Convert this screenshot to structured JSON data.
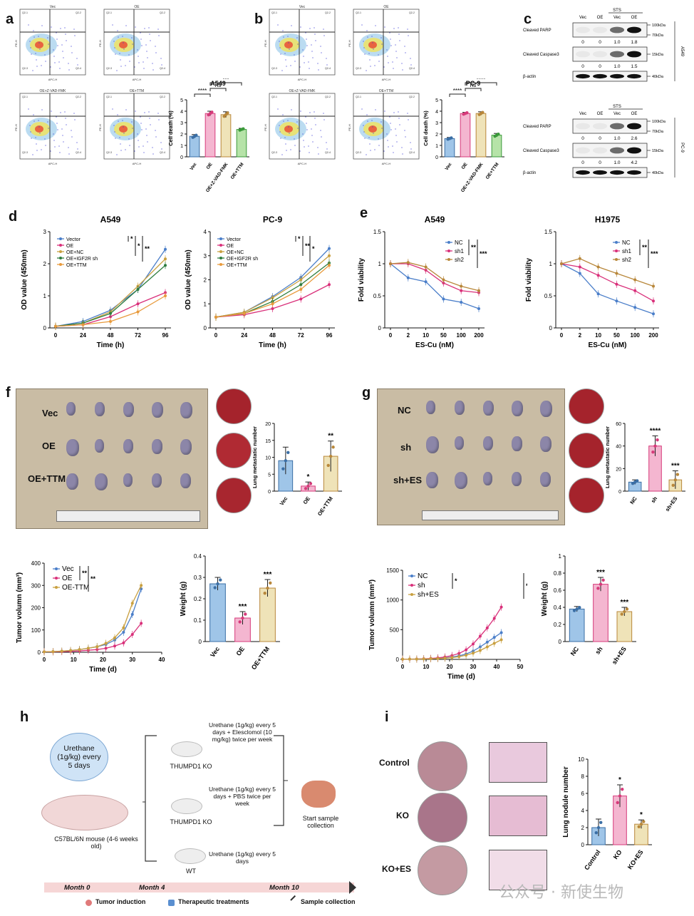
{
  "panel_labels": {
    "a": "a",
    "b": "b",
    "c": "c",
    "d": "d",
    "e": "e",
    "f": "f",
    "g": "g",
    "h": "h",
    "i": "i"
  },
  "flow_a": [
    "Vec",
    "OE",
    "OE+Z-VAD-FMK",
    "OE+TTM"
  ],
  "flow_b": [
    "Vec",
    "OE",
    "OE+Z-VAD-FMK",
    "OE+TTM"
  ],
  "flow_axes": {
    "x": "APC-H",
    "y": "PE-H"
  },
  "quad_labels": [
    "Q2-1",
    "Q2-2",
    "Q2-3",
    "Q2-4"
  ],
  "western": {
    "treat_header": "STS",
    "lanes": [
      "Vec",
      "OE",
      "Vec",
      "OE"
    ],
    "a549": {
      "cell_line": "A549",
      "rows": [
        {
          "name": "Cleaved PARP",
          "markers": [
            "100kDa",
            "70kDa"
          ],
          "values": [
            "0",
            "0",
            "1.0",
            "1.8"
          ]
        },
        {
          "name": "Cleaved Caspase3",
          "markers": [
            "15kDa"
          ],
          "values": [
            "0",
            "0",
            "1.0",
            "1.5"
          ]
        },
        {
          "name": "β-actin",
          "markers": [
            "40kDa"
          ],
          "values": []
        }
      ]
    },
    "pc9": {
      "cell_line": "PC-9",
      "rows": [
        {
          "name": "Cleaved PARP",
          "markers": [
            "100kDa",
            "70kDa"
          ],
          "values": [
            "0",
            "0",
            "1.0",
            "2.6"
          ]
        },
        {
          "name": "Cleaved Caspase3",
          "markers": [
            "15kDa"
          ],
          "values": [
            "0",
            "0",
            "1.0",
            "4.2"
          ]
        },
        {
          "name": "β-actin",
          "markers": [
            "40kDa"
          ],
          "values": []
        }
      ]
    }
  },
  "photo_f": {
    "rows": [
      "Vec",
      "OE",
      "OE+TTM"
    ]
  },
  "photo_g": {
    "rows": [
      "NC",
      "sh",
      "sh+ES"
    ]
  },
  "schematic": {
    "urethane_bubble": "Urethane (1g/kg) every 5 days",
    "mouse_label": "C57BL/6N mouse (4-6 weeks old)",
    "group1_treat": "Urethane (1g/kg) every 5 days + Elesclomol (10 mg/kg) twice per week",
    "group1_label": "THUMPD1 KO",
    "group2_treat": "Urethane (1g/kg) every 5 days + PBS twice per week",
    "group2_label": "THUMPD1 KO",
    "group3_treat": "Urethane (1g/kg) every 5 days",
    "group3_label": "WT",
    "collection": "Start sample collection",
    "timeline": [
      "Month 0",
      "Month 4",
      "Month 10"
    ],
    "legend": [
      "Tumor induction",
      "Therapeutic treatments",
      "Sample collection"
    ]
  },
  "panel_i_rows": [
    "Control",
    "KO",
    "KO+ES"
  ],
  "watermark": "公众号 · 新使生物",
  "chart_data": [
    {
      "id": "a_bar",
      "type": "bar",
      "title": "A549",
      "ylabel": "Cell death (%)",
      "categories": [
        "Vec",
        "OE",
        "OE+Z-VAD-FMK",
        "OE+TTM"
      ],
      "values": [
        1.8,
        3.8,
        3.7,
        2.4
      ],
      "errors": [
        0.15,
        0.2,
        0.25,
        0.1
      ],
      "ylim": [
        0,
        5
      ],
      "yticks": [
        0,
        1,
        2,
        3,
        4,
        5
      ],
      "colors": [
        "#9fc5e8",
        "#f4b6d0",
        "#efe3b8",
        "#b6e3a8"
      ],
      "dots": [
        "#3a6ea5",
        "#d63a7a",
        "#b8873a",
        "#3a9a3a"
      ],
      "sig": [
        "****",
        "ns",
        "***"
      ]
    },
    {
      "id": "b_bar",
      "type": "bar",
      "title": "PC-9",
      "ylabel": "Cell death (%)",
      "categories": [
        "Vec",
        "OE",
        "OE+Z-VAD-FMK",
        "OE+TTM"
      ],
      "values": [
        1.6,
        3.8,
        3.8,
        1.9
      ],
      "errors": [
        0.1,
        0.1,
        0.15,
        0.15
      ],
      "ylim": [
        0,
        5
      ],
      "yticks": [
        0,
        1,
        2,
        3,
        4,
        5
      ],
      "colors": [
        "#9fc5e8",
        "#f4b6d0",
        "#efe3b8",
        "#b6e3a8"
      ],
      "dots": [
        "#3a6ea5",
        "#d63a7a",
        "#b8873a",
        "#3a9a3a"
      ],
      "sig": [
        "****",
        "ns",
        "****"
      ]
    },
    {
      "id": "d_a549",
      "type": "line",
      "title": "A549",
      "xlabel": "Time (h)",
      "ylabel": "OD value (450nm)",
      "x": [
        0,
        24,
        48,
        72,
        96
      ],
      "ylim": [
        0,
        3
      ],
      "yticks": [
        0,
        1,
        2,
        3
      ],
      "series": [
        {
          "name": "Vector",
          "color": "#4a7ec9",
          "values": [
            0.05,
            0.2,
            0.55,
            1.2,
            2.45
          ]
        },
        {
          "name": "OE",
          "color": "#d9307a",
          "values": [
            0.05,
            0.1,
            0.35,
            0.75,
            1.1
          ]
        },
        {
          "name": "OE+NC",
          "color": "#c9a040",
          "values": [
            0.05,
            0.15,
            0.5,
            1.3,
            2.15
          ]
        },
        {
          "name": "OE+IGF2R sh",
          "color": "#2e7d3e",
          "values": [
            0.05,
            0.15,
            0.45,
            1.2,
            1.95
          ]
        },
        {
          "name": "OE+TTM",
          "color": "#e89a3c",
          "values": [
            0.05,
            0.1,
            0.2,
            0.5,
            1.0
          ]
        }
      ],
      "sig": [
        "*",
        "*",
        "**"
      ]
    },
    {
      "id": "d_pc9",
      "type": "line",
      "title": "PC-9",
      "xlabel": "Time (h)",
      "ylabel": "OD value (450nm)",
      "x": [
        0,
        24,
        48,
        72,
        96
      ],
      "ylim": [
        0,
        4
      ],
      "yticks": [
        0,
        1,
        2,
        3,
        4
      ],
      "series": [
        {
          "name": "Vector",
          "color": "#4a7ec9",
          "values": [
            0.45,
            0.65,
            1.3,
            2.1,
            3.3
          ]
        },
        {
          "name": "OE",
          "color": "#d9307a",
          "values": [
            0.45,
            0.55,
            0.8,
            1.2,
            1.8
          ]
        },
        {
          "name": "OE+NC",
          "color": "#c9a040",
          "values": [
            0.45,
            0.65,
            1.25,
            2.0,
            3.0
          ]
        },
        {
          "name": "OE+IGF2R sh",
          "color": "#2e7d3e",
          "values": [
            0.45,
            0.6,
            1.1,
            1.8,
            2.7
          ]
        },
        {
          "name": "OE+TTM",
          "color": "#e89a3c",
          "values": [
            0.45,
            0.6,
            1.0,
            1.6,
            2.6
          ]
        }
      ],
      "sig": [
        "*",
        "**",
        "*"
      ]
    },
    {
      "id": "e_a549",
      "type": "line",
      "title": "A549",
      "xlabel": "ES-Cu (nM)",
      "ylabel": "Fold viability",
      "x": [
        "0",
        "2",
        "10",
        "50",
        "100",
        "200"
      ],
      "ylim": [
        0,
        1.5
      ],
      "yticks": [
        0,
        0.5,
        1.0,
        1.5
      ],
      "series": [
        {
          "name": "NC",
          "color": "#4a7ec9",
          "values": [
            1.0,
            0.78,
            0.72,
            0.45,
            0.4,
            0.3
          ]
        },
        {
          "name": "sh1",
          "color": "#d9307a",
          "values": [
            1.0,
            1.0,
            0.9,
            0.7,
            0.58,
            0.55
          ]
        },
        {
          "name": "sh2",
          "color": "#b8873a",
          "values": [
            1.0,
            1.02,
            0.95,
            0.75,
            0.65,
            0.58
          ]
        }
      ],
      "sig": [
        "**",
        "***"
      ]
    },
    {
      "id": "e_h1975",
      "type": "line",
      "title": "H1975",
      "xlabel": "ES-Cu (nM)",
      "ylabel": "Fold viability",
      "x": [
        "0",
        "2",
        "10",
        "50",
        "100",
        "200"
      ],
      "ylim": [
        0,
        1.5
      ],
      "yticks": [
        0,
        0.5,
        1.0,
        1.5
      ],
      "series": [
        {
          "name": "NC",
          "color": "#4a7ec9",
          "values": [
            1.0,
            0.85,
            0.53,
            0.42,
            0.32,
            0.22
          ]
        },
        {
          "name": "sh1",
          "color": "#d9307a",
          "values": [
            1.0,
            0.95,
            0.82,
            0.68,
            0.58,
            0.42
          ]
        },
        {
          "name": "sh2",
          "color": "#b8873a",
          "values": [
            1.0,
            1.08,
            0.95,
            0.85,
            0.75,
            0.65
          ]
        }
      ],
      "sig": [
        "**",
        "***"
      ]
    },
    {
      "id": "f_meta",
      "type": "bar",
      "ylabel": "Lung metastatic number",
      "categories": [
        "Vec",
        "OE",
        "OE+TTM"
      ],
      "values": [
        9,
        1.5,
        10.3
      ],
      "errors": [
        4,
        1.2,
        4.5
      ],
      "ylim": [
        0,
        20
      ],
      "yticks": [
        0,
        5,
        10,
        15,
        20
      ],
      "colors": [
        "#9fc5e8",
        "#f4b6d0",
        "#efe3b8"
      ],
      "dots": [
        "#3a6ea5",
        "#d63a7a",
        "#b8873a"
      ],
      "sig": [
        "",
        "*",
        "**"
      ]
    },
    {
      "id": "g_meta",
      "type": "bar",
      "ylabel": "Lung metastatic number",
      "categories": [
        "NC",
        "sh",
        "sh+ES"
      ],
      "values": [
        8,
        40,
        10
      ],
      "errors": [
        2,
        9,
        8
      ],
      "ylim": [
        0,
        60
      ],
      "yticks": [
        0,
        20,
        40,
        60
      ],
      "colors": [
        "#9fc5e8",
        "#f4b6d0",
        "#efe3b8"
      ],
      "dots": [
        "#3a6ea5",
        "#d63a7a",
        "#b8873a"
      ],
      "sig": [
        "",
        "****",
        "***"
      ]
    },
    {
      "id": "f_vol",
      "type": "line",
      "xlabel": "Time (d)",
      "ylabel": "Tumor volumn (mm³)",
      "x": [
        0,
        3,
        6,
        9,
        12,
        15,
        18,
        21,
        24,
        27,
        30,
        33
      ],
      "ylim": [
        0,
        400
      ],
      "yticks": [
        0,
        100,
        200,
        300,
        400
      ],
      "xticks": [
        0,
        10,
        20,
        30,
        40
      ],
      "xlim": [
        0,
        40
      ],
      "series": [
        {
          "name": "Vec",
          "color": "#4a7ec9",
          "values": [
            2,
            3,
            5,
            8,
            12,
            18,
            25,
            35,
            55,
            90,
            170,
            285
          ]
        },
        {
          "name": "OE",
          "color": "#d9307a",
          "values": [
            2,
            2,
            3,
            4,
            6,
            9,
            12,
            18,
            28,
            42,
            80,
            130
          ]
        },
        {
          "name": "OE-TTM",
          "color": "#c9a040",
          "values": [
            2,
            3,
            5,
            8,
            12,
            18,
            25,
            40,
            65,
            110,
            220,
            300
          ]
        }
      ],
      "sig": [
        "**",
        "**"
      ]
    },
    {
      "id": "f_wt",
      "type": "bar",
      "ylabel": "Weight (g)",
      "categories": [
        "Vec",
        "OE",
        "OE+TTM"
      ],
      "values": [
        0.27,
        0.11,
        0.25
      ],
      "errors": [
        0.03,
        0.03,
        0.04
      ],
      "ylim": [
        0,
        0.4
      ],
      "yticks": [
        0,
        0.1,
        0.2,
        0.3,
        0.4
      ],
      "colors": [
        "#9fc5e8",
        "#f4b6d0",
        "#efe3b8"
      ],
      "dots": [
        "#3a6ea5",
        "#d63a7a",
        "#b8873a"
      ],
      "sig": [
        "",
        "***",
        "***"
      ]
    },
    {
      "id": "g_vol",
      "type": "line",
      "xlabel": "Time (d)",
      "ylabel": "Tumor volumn (mm³)",
      "x": [
        0,
        3,
        6,
        9,
        12,
        15,
        18,
        21,
        24,
        27,
        30,
        33,
        36,
        39,
        42
      ],
      "ylim": [
        0,
        1500
      ],
      "yticks": [
        0,
        500,
        1000,
        1500
      ],
      "xticks": [
        0,
        10,
        20,
        30,
        40,
        50
      ],
      "xlim": [
        0,
        50
      ],
      "series": [
        {
          "name": "NC",
          "color": "#4a7ec9",
          "values": [
            3,
            4,
            5,
            8,
            12,
            18,
            25,
            40,
            60,
            90,
            140,
            210,
            290,
            370,
            450
          ]
        },
        {
          "name": "sh",
          "color": "#d9307a",
          "values": [
            3,
            4,
            6,
            10,
            16,
            25,
            40,
            65,
            100,
            160,
            260,
            390,
            530,
            690,
            880
          ]
        },
        {
          "name": "sh+ES",
          "color": "#c9a040",
          "values": [
            3,
            4,
            5,
            7,
            10,
            14,
            20,
            30,
            45,
            70,
            105,
            150,
            210,
            270,
            330
          ]
        }
      ],
      "sig": [
        "*",
        "**"
      ]
    },
    {
      "id": "g_wt",
      "type": "bar",
      "ylabel": "Weight (g)",
      "categories": [
        "NC",
        "sh",
        "sh+ES"
      ],
      "values": [
        0.38,
        0.67,
        0.35
      ],
      "errors": [
        0.03,
        0.08,
        0.05
      ],
      "ylim": [
        0,
        1.0
      ],
      "yticks": [
        0,
        0.2,
        0.4,
        0.6,
        0.8,
        1.0
      ],
      "colors": [
        "#9fc5e8",
        "#f4b6d0",
        "#efe3b8"
      ],
      "dots": [
        "#3a6ea5",
        "#d63a7a",
        "#b8873a"
      ],
      "sig": [
        "",
        "***",
        "***"
      ]
    },
    {
      "id": "i_bar",
      "type": "bar",
      "ylabel": "Lung nodule number",
      "categories": [
        "Control",
        "KO",
        "KO+ES"
      ],
      "values": [
        2,
        5.7,
        2.4
      ],
      "errors": [
        1,
        1.3,
        0.5
      ],
      "ylim": [
        0,
        10
      ],
      "yticks": [
        0,
        2,
        4,
        6,
        8,
        10
      ],
      "colors": [
        "#9fc5e8",
        "#f4b6d0",
        "#efe3b8"
      ],
      "dots": [
        "#3a6ea5",
        "#d63a7a",
        "#b8873a"
      ],
      "sig": [
        "",
        "*",
        "*"
      ]
    }
  ]
}
